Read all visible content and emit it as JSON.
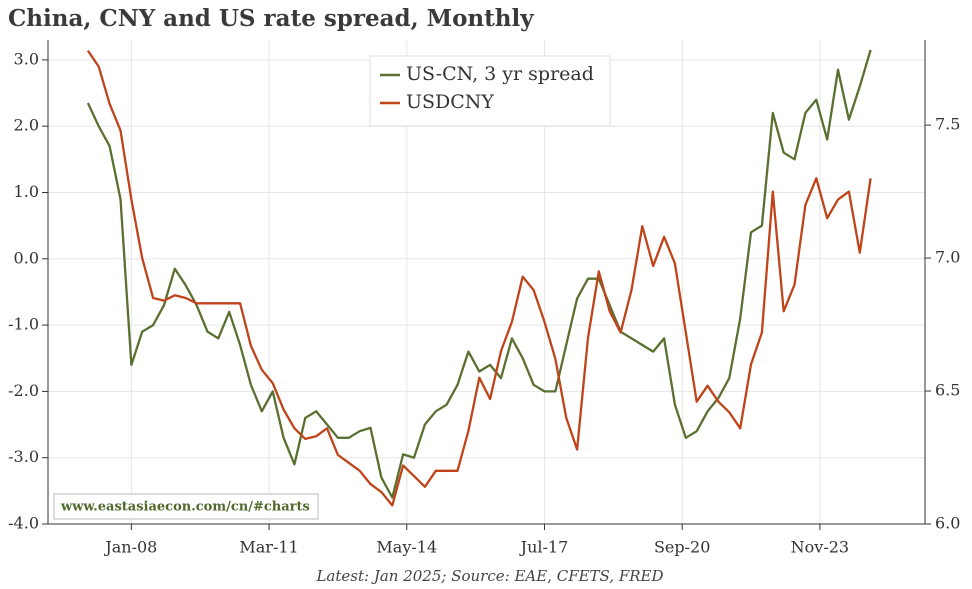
{
  "chart_data": {
    "type": "line",
    "title": "China, CNY and US rate spread, Monthly",
    "footnote": "Latest: Jan 2025; Source: EAE, CFETS, FRED",
    "watermark": "www.eastasiaecon.com/cn/#charts",
    "x": [
      "2007-01",
      "2007-04",
      "2007-07",
      "2007-10",
      "2008-01",
      "2008-04",
      "2008-07",
      "2008-10",
      "2009-01",
      "2009-04",
      "2009-07",
      "2009-10",
      "2010-01",
      "2010-04",
      "2010-07",
      "2010-10",
      "2011-01",
      "2011-04",
      "2011-07",
      "2011-10",
      "2012-01",
      "2012-04",
      "2012-07",
      "2012-10",
      "2013-01",
      "2013-04",
      "2013-07",
      "2013-10",
      "2014-01",
      "2014-04",
      "2014-07",
      "2014-10",
      "2015-01",
      "2015-04",
      "2015-07",
      "2015-10",
      "2016-01",
      "2016-04",
      "2016-07",
      "2016-10",
      "2017-01",
      "2017-04",
      "2017-07",
      "2017-10",
      "2018-01",
      "2018-04",
      "2018-07",
      "2018-10",
      "2019-01",
      "2019-04",
      "2019-07",
      "2019-10",
      "2020-01",
      "2020-04",
      "2020-07",
      "2020-10",
      "2021-01",
      "2021-04",
      "2021-07",
      "2021-10",
      "2022-01",
      "2022-04",
      "2022-07",
      "2022-10",
      "2023-01",
      "2023-04",
      "2023-07",
      "2023-10",
      "2024-01",
      "2024-04",
      "2024-07",
      "2024-10",
      "2025-01"
    ],
    "series": [
      {
        "name": "US-CN, 3 yr spread",
        "color": "#5a7030",
        "axis": "y",
        "values": [
          2.35,
          2.0,
          1.7,
          0.9,
          -1.6,
          -1.1,
          -1.0,
          -0.7,
          -0.15,
          -0.4,
          -0.7,
          -1.1,
          -1.2,
          -0.8,
          -1.3,
          -1.9,
          -2.3,
          -2.0,
          -2.7,
          -3.1,
          -2.4,
          -2.3,
          -2.5,
          -2.7,
          -2.7,
          -2.6,
          -2.55,
          -3.3,
          -3.6,
          -2.95,
          -3.0,
          -2.5,
          -2.3,
          -2.2,
          -1.9,
          -1.4,
          -1.7,
          -1.6,
          -1.8,
          -1.2,
          -1.5,
          -1.9,
          -2.0,
          -2.0,
          -1.3,
          -0.6,
          -0.3,
          -0.3,
          -0.7,
          -1.1,
          -1.2,
          -1.3,
          -1.4,
          -1.2,
          -2.2,
          -2.7,
          -2.6,
          -2.3,
          -2.1,
          -1.8,
          -0.9,
          0.4,
          0.5,
          2.2,
          1.6,
          1.5,
          2.2,
          2.4,
          1.8,
          2.85,
          2.1,
          2.6,
          3.15
        ]
      },
      {
        "name": "USDCNY",
        "color": "#c0441a",
        "axis": "y2",
        "values": [
          7.78,
          7.72,
          7.58,
          7.48,
          7.22,
          7.0,
          6.85,
          6.84,
          6.86,
          6.85,
          6.83,
          6.83,
          6.83,
          6.83,
          6.83,
          6.67,
          6.58,
          6.53,
          6.43,
          6.36,
          6.32,
          6.33,
          6.36,
          6.26,
          6.23,
          6.2,
          6.15,
          6.12,
          6.07,
          6.22,
          6.18,
          6.14,
          6.2,
          6.2,
          6.2,
          6.35,
          6.55,
          6.47,
          6.65,
          6.76,
          6.93,
          6.88,
          6.76,
          6.62,
          6.4,
          6.28,
          6.7,
          6.95,
          6.8,
          6.72,
          6.88,
          7.12,
          6.97,
          7.08,
          6.98,
          6.72,
          6.46,
          6.52,
          6.46,
          6.42,
          6.36,
          6.6,
          6.72,
          7.25,
          6.8,
          6.9,
          7.2,
          7.3,
          7.15,
          7.22,
          7.25,
          7.02,
          7.3
        ]
      }
    ],
    "xlim": [
      "2006-02",
      "2026-04"
    ],
    "xticks": [
      {
        "value": "2008-01",
        "label": "Jan-08"
      },
      {
        "value": "2011-03",
        "label": "Mar-11"
      },
      {
        "value": "2014-05",
        "label": "May-14"
      },
      {
        "value": "2017-07",
        "label": "Jul-17"
      },
      {
        "value": "2020-09",
        "label": "Sep-20"
      },
      {
        "value": "2023-11",
        "label": "Nov-23"
      }
    ],
    "ylim": [
      -4,
      3.3
    ],
    "yticks": [
      {
        "value": -4,
        "label": "-4.0"
      },
      {
        "value": -3,
        "label": "-3.0"
      },
      {
        "value": -2,
        "label": "-2.0"
      },
      {
        "value": -1,
        "label": "-1.0"
      },
      {
        "value": 0,
        "label": "0.0"
      },
      {
        "value": 1,
        "label": "1.0"
      },
      {
        "value": 2,
        "label": "2.0"
      },
      {
        "value": 3,
        "label": "3.0"
      }
    ],
    "y2lim": [
      6.0,
      7.82
    ],
    "y2ticks": [
      {
        "value": 6,
        "label": "6.0"
      },
      6.5,
      {
        "value": 7,
        "label": "7.0"
      },
      7.5
    ],
    "grid": true,
    "legend": "top"
  }
}
